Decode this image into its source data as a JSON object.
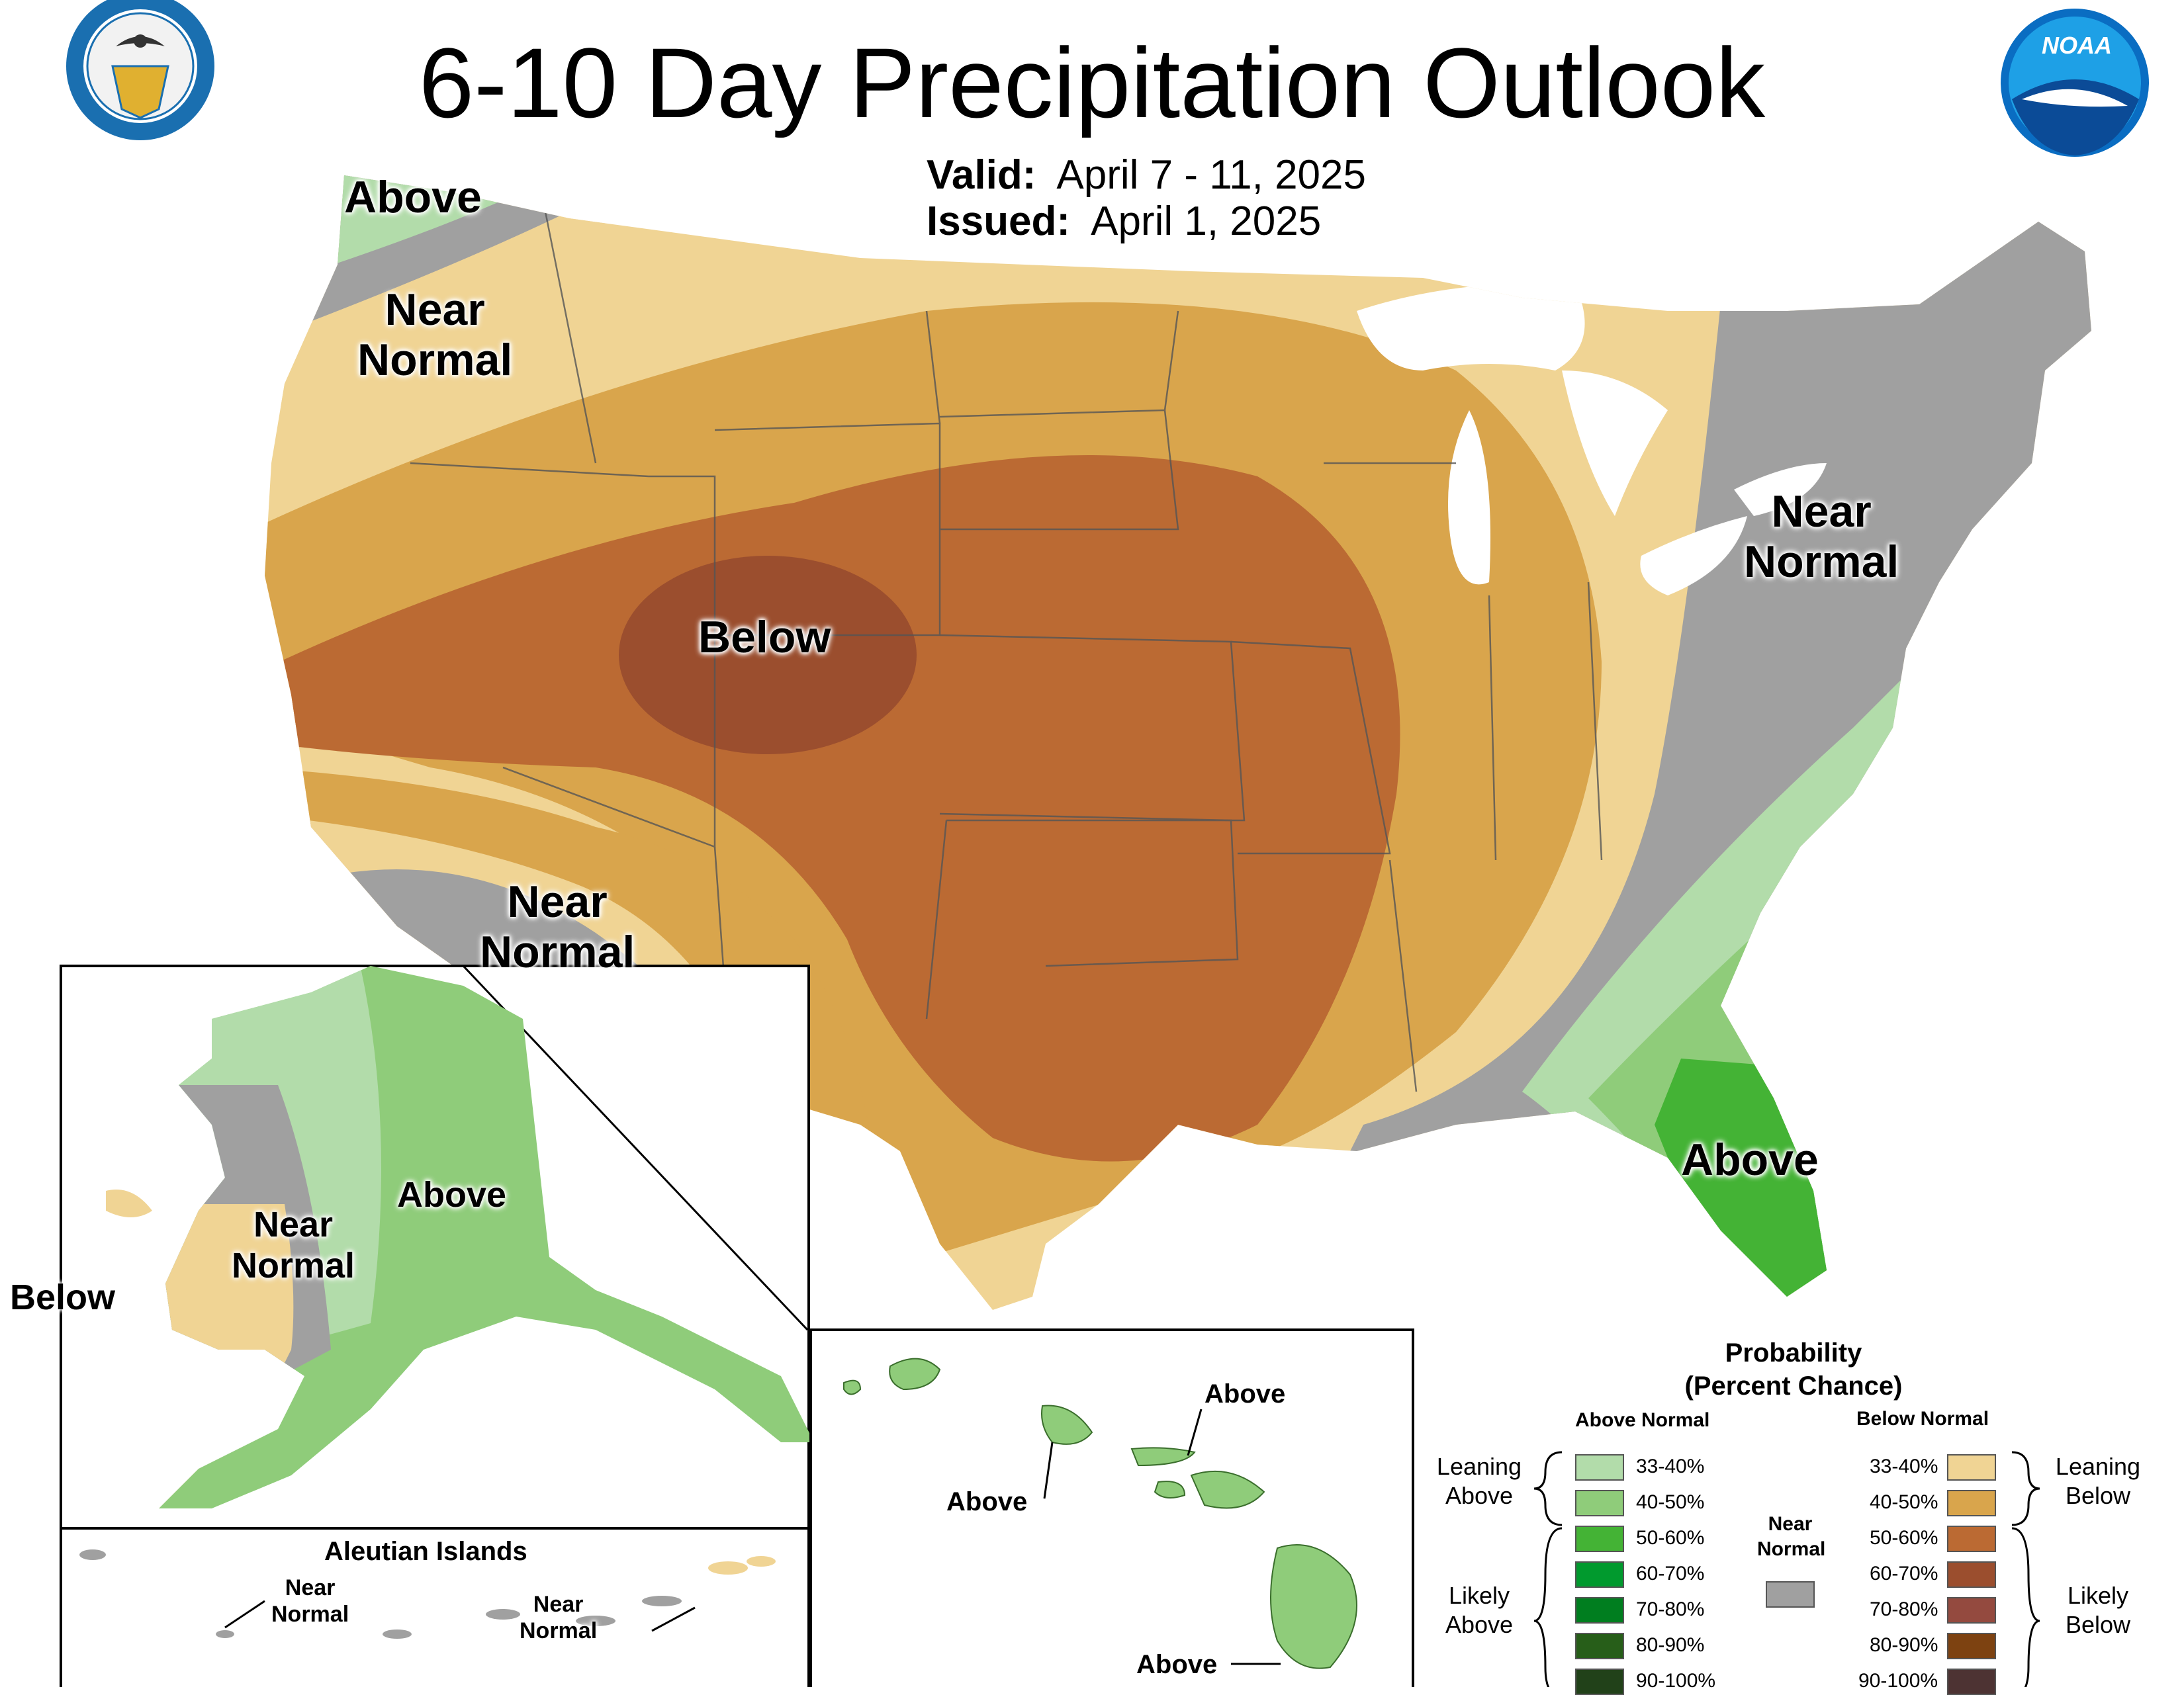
{
  "title": "6-10 Day Precipitation Outlook",
  "valid": {
    "label": "Valid:",
    "value": "April 7 - 11, 2025"
  },
  "issued": {
    "label": "Issued:",
    "value": "April 1, 2025"
  },
  "logos": {
    "doc": "department-of-commerce-seal",
    "noaa": "noaa-logo",
    "noaa_text": "NOAA"
  },
  "colors": {
    "above_33_40": "#b2dcaa",
    "above_40_50": "#8fcc7a",
    "above_50_60": "#44b335",
    "above_60_70": "#019a2e",
    "above_70_80": "#007e1f",
    "above_80_90": "#275e19",
    "above_90_100": "#214119",
    "below_33_40": "#f0d494",
    "below_40_50": "#d9a54c",
    "below_50_60": "#bb6a33",
    "below_60_70": "#9b4e2e",
    "below_70_80": "#944a3f",
    "below_80_90": "#7d4211",
    "below_90_100": "#4d3333",
    "near_normal": "#a0a0a0"
  },
  "map_labels": {
    "conus": [
      {
        "id": "nw-above",
        "text": "Above"
      },
      {
        "id": "nw-near",
        "line1": "Near",
        "line2": "Normal"
      },
      {
        "id": "central-below",
        "text": "Below"
      },
      {
        "id": "ne-near",
        "line1": "Near",
        "line2": "Normal"
      },
      {
        "id": "sw-near",
        "line1": "Near",
        "line2": "Normal"
      },
      {
        "id": "florida-above",
        "text": "Above"
      }
    ],
    "alaska": {
      "above": "Above",
      "near1": "Near",
      "near2": "Normal",
      "below": "Below"
    },
    "aleutian": {
      "title": "Aleutian Islands",
      "w_near1": "Near",
      "w_near2": "Normal",
      "e_near1": "Near",
      "e_near2": "Normal"
    },
    "hawaii": {
      "above1": "Above",
      "above2": "Above",
      "above3": "Above"
    }
  },
  "legend": {
    "title1": "Probability",
    "title2": "(Percent Chance)",
    "above_header": "Above Normal",
    "below_header": "Below Normal",
    "near_normal1": "Near",
    "near_normal2": "Normal",
    "leaning_above1": "Leaning",
    "leaning_above2": "Above",
    "likely_above1": "Likely",
    "likely_above2": "Above",
    "leaning_below1": "Leaning",
    "leaning_below2": "Below",
    "likely_below1": "Likely",
    "likely_below2": "Below",
    "ranges": [
      "33-40%",
      "40-50%",
      "50-60%",
      "60-70%",
      "70-80%",
      "80-90%",
      "90-100%"
    ]
  }
}
